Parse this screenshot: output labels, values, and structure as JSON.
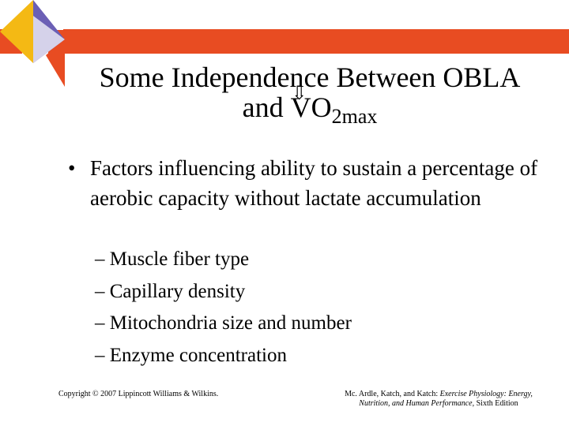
{
  "colors": {
    "top_bar": "#e84c22",
    "emblem_yellow": "#f4b914",
    "emblem_purple": "#6b5fb5",
    "emblem_light_purple": "#d5d2ea",
    "emblem_red": "#e84c22"
  },
  "title": {
    "line1": "Some Independence Between OBLA",
    "line2_prefix": "and ",
    "v_letter": "V",
    "v_dot_mark": "⇩",
    "o2": "O",
    "subscript": "2max"
  },
  "bullet": {
    "symbol": "•",
    "text": "Factors influencing ability to sustain a percentage of aerobic capacity without lactate accumulation"
  },
  "subitems": [
    "– Muscle fiber type",
    "– Capillary density",
    "– Mitochondria size and number",
    "– Enzyme concentration"
  ],
  "footer": {
    "copyright": "Copyright © 2007 Lippincott Williams & Wilkins.",
    "citation_authors": "Mc. Ardle, Katch, and Katch: ",
    "citation_title": "Exercise Physiology: Energy, Nutrition, and Human Performance,",
    "citation_edition": " Sixth Edition"
  }
}
